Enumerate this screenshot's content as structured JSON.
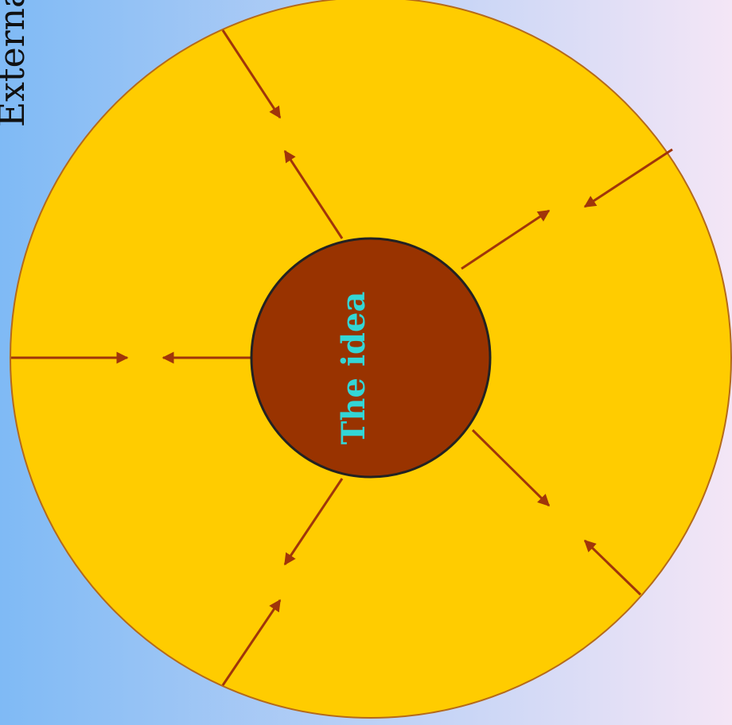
{
  "colors": {
    "background_left": "#7fbaf5",
    "background_right": "#f4e6f6",
    "outer_circle_fill": "#ffcc00",
    "outer_circle_stroke": "#b56a1a",
    "inner_circle_fill": "#993300",
    "inner_circle_stroke": "#222222",
    "arrow_color": "#a0350a",
    "center_text_color": "#33d6d6"
  },
  "diagram": {
    "edge_label": "Externa",
    "center_label": "The idea"
  }
}
